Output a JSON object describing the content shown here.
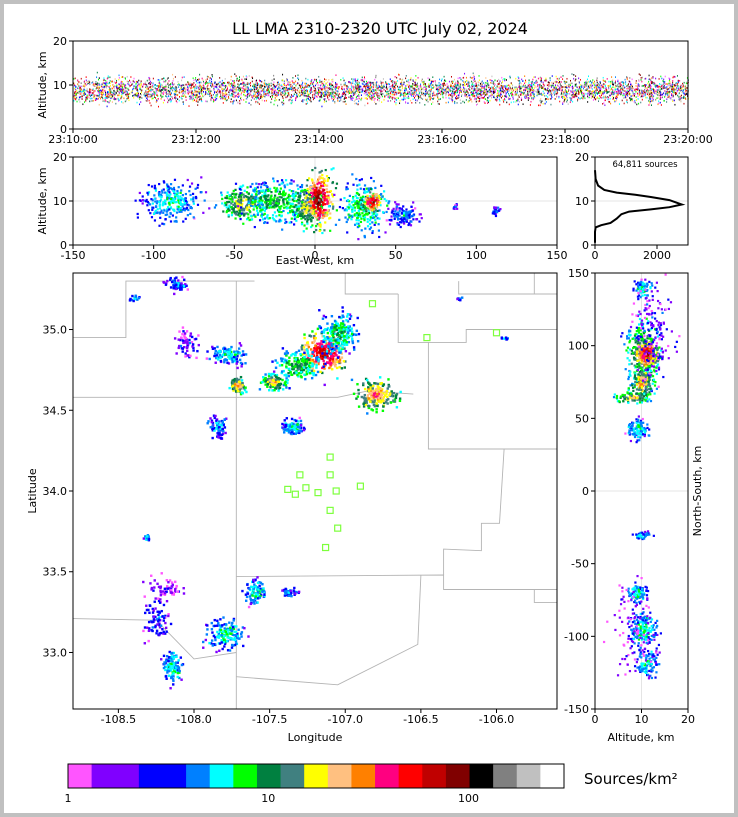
{
  "title": "LL LMA 2310-2320 UTC July 02, 2024",
  "chart_data": [
    {
      "name": "time-altitude",
      "type": "scatter",
      "xlabel": "",
      "ylabel": "Altitude, km",
      "xlim": [
        0,
        600
      ],
      "ylim": [
        0,
        20
      ],
      "x_ticks": [
        "23:10:00",
        "23:12:00",
        "23:14:00",
        "23:16:00",
        "23:18:00",
        "23:20:00"
      ],
      "y_ticks": [
        0,
        10,
        20
      ],
      "band": {
        "low": 4,
        "high": 14,
        "peak": 9
      }
    },
    {
      "name": "ew-altitude",
      "type": "heatmap",
      "xlabel": "East-West, km",
      "ylabel": "Altitude, km",
      "xlim": [
        -150,
        150
      ],
      "ylim": [
        0,
        20
      ],
      "x_ticks": [
        -150,
        -100,
        -50,
        0,
        50,
        100,
        150
      ],
      "y_ticks": [
        0,
        10,
        20
      ],
      "clusters": [
        {
          "x": -90,
          "z": 10,
          "w": 15,
          "h": 4,
          "n": 260,
          "c": 0.28
        },
        {
          "x": -45,
          "z": 9.5,
          "w": 12,
          "h": 3,
          "n": 260,
          "c": 0.5
        },
        {
          "x": -25,
          "z": 10,
          "w": 15,
          "h": 4,
          "n": 300,
          "c": 0.38
        },
        {
          "x": -5,
          "z": 9,
          "w": 10,
          "h": 4,
          "n": 240,
          "c": 0.5
        },
        {
          "x": 2,
          "z": 10.5,
          "w": 7,
          "h": 5,
          "n": 240,
          "c": 0.85
        },
        {
          "x": 30,
          "z": 9,
          "w": 12,
          "h": 5,
          "n": 260,
          "c": 0.35
        },
        {
          "x": 35,
          "z": 10,
          "w": 5,
          "h": 2,
          "n": 90,
          "c": 0.78
        },
        {
          "x": 55,
          "z": 7,
          "w": 8,
          "h": 2,
          "n": 120,
          "c": 0.2
        },
        {
          "x": 112,
          "z": 8,
          "w": 2,
          "h": 1,
          "n": 25,
          "c": 0.2
        },
        {
          "x": 86,
          "z": 9,
          "w": 1.5,
          "h": 0.5,
          "n": 10,
          "c": 0.15
        }
      ]
    },
    {
      "name": "altitude-histogram",
      "type": "line",
      "annotation": "64,811 sources",
      "xlim": [
        0,
        3000
      ],
      "ylim": [
        0,
        20
      ],
      "x_ticks": [
        0,
        2000
      ],
      "y_ticks": [
        0,
        10,
        20
      ],
      "points": [
        [
          0,
          0.5
        ],
        [
          0,
          3
        ],
        [
          20,
          4
        ],
        [
          200,
          4.5
        ],
        [
          500,
          5
        ],
        [
          700,
          6
        ],
        [
          850,
          7
        ],
        [
          1100,
          7.6
        ],
        [
          1800,
          8.1
        ],
        [
          2400,
          8.6
        ],
        [
          2800,
          9.2
        ],
        [
          2400,
          10.2
        ],
        [
          1800,
          10.9
        ],
        [
          1300,
          11.4
        ],
        [
          700,
          11.9
        ],
        [
          300,
          12.5
        ],
        [
          100,
          13.5
        ],
        [
          20,
          15
        ],
        [
          0,
          17
        ]
      ]
    },
    {
      "name": "plan-view",
      "type": "heatmap",
      "xlabel": "Longitude",
      "ylabel": "Latitude",
      "xlim": [
        -108.8,
        -105.6
      ],
      "ylim": [
        32.65,
        35.35
      ],
      "x_ticks": [
        -108.5,
        -108.0,
        -107.5,
        -107.0,
        -106.5,
        -106.0
      ],
      "y_ticks": [
        33.0,
        33.5,
        34.0,
        34.5,
        35.0
      ],
      "clusters": [
        {
          "x": -107.15,
          "y": 34.86,
          "w": 0.12,
          "h": 0.1,
          "n": 280,
          "c": 0.82
        },
        {
          "x": -107.05,
          "y": 34.98,
          "w": 0.1,
          "h": 0.1,
          "n": 220,
          "c": 0.35
        },
        {
          "x": -107.32,
          "y": 34.78,
          "w": 0.12,
          "h": 0.08,
          "n": 180,
          "c": 0.4
        },
        {
          "x": -107.48,
          "y": 34.68,
          "w": 0.07,
          "h": 0.04,
          "n": 120,
          "c": 0.55
        },
        {
          "x": -106.8,
          "y": 34.6,
          "w": 0.12,
          "h": 0.08,
          "n": 200,
          "c": 0.62
        },
        {
          "x": -107.72,
          "y": 34.66,
          "w": 0.04,
          "h": 0.04,
          "n": 90,
          "c": 0.62
        },
        {
          "x": -107.78,
          "y": 34.85,
          "w": 0.1,
          "h": 0.05,
          "n": 110,
          "c": 0.28
        },
        {
          "x": -107.35,
          "y": 34.4,
          "w": 0.06,
          "h": 0.04,
          "n": 100,
          "c": 0.28
        },
        {
          "x": -107.85,
          "y": 34.4,
          "w": 0.05,
          "h": 0.06,
          "n": 80,
          "c": 0.22
        },
        {
          "x": -108.12,
          "y": 35.28,
          "w": 0.06,
          "h": 0.04,
          "n": 60,
          "c": 0.2
        },
        {
          "x": -108.05,
          "y": 34.92,
          "w": 0.06,
          "h": 0.08,
          "n": 60,
          "c": 0.12
        },
        {
          "x": -107.6,
          "y": 33.38,
          "w": 0.06,
          "h": 0.06,
          "n": 90,
          "c": 0.3
        },
        {
          "x": -107.8,
          "y": 33.12,
          "w": 0.1,
          "h": 0.08,
          "n": 150,
          "c": 0.3
        },
        {
          "x": -108.15,
          "y": 32.92,
          "w": 0.05,
          "h": 0.08,
          "n": 110,
          "c": 0.3
        },
        {
          "x": -108.25,
          "y": 33.2,
          "w": 0.08,
          "h": 0.1,
          "n": 80,
          "c": 0.18
        },
        {
          "x": -108.2,
          "y": 33.4,
          "w": 0.1,
          "h": 0.06,
          "n": 60,
          "c": 0.1
        },
        {
          "x": -107.38,
          "y": 33.38,
          "w": 0.05,
          "h": 0.03,
          "n": 40,
          "c": 0.22
        },
        {
          "x": -108.32,
          "y": 33.72,
          "w": 0.015,
          "h": 0.015,
          "n": 15,
          "c": 0.3
        },
        {
          "x": -108.4,
          "y": 35.2,
          "w": 0.03,
          "h": 0.02,
          "n": 15,
          "c": 0.25
        },
        {
          "x": -106.25,
          "y": 35.2,
          "w": 0.02,
          "h": 0.01,
          "n": 10,
          "c": 0.2
        },
        {
          "x": -105.95,
          "y": 34.95,
          "w": 0.02,
          "h": 0.01,
          "n": 8,
          "c": 0.2
        }
      ],
      "stations": [
        [
          -106.82,
          35.16
        ],
        [
          -106.46,
          34.95
        ],
        [
          -106.0,
          34.98
        ],
        [
          -107.1,
          34.21
        ],
        [
          -107.3,
          34.1
        ],
        [
          -107.1,
          34.1
        ],
        [
          -107.38,
          34.01
        ],
        [
          -107.26,
          34.02
        ],
        [
          -107.33,
          33.98
        ],
        [
          -107.18,
          33.99
        ],
        [
          -107.06,
          34.0
        ],
        [
          -106.9,
          34.03
        ],
        [
          -107.1,
          33.88
        ],
        [
          -107.05,
          33.77
        ],
        [
          -107.13,
          33.65
        ]
      ],
      "county_lines": [
        [
          [
            -108.8,
            34.95
          ],
          [
            -108.45,
            34.95
          ],
          [
            -108.45,
            35.3
          ],
          [
            -107.6,
            35.3
          ]
        ],
        [
          [
            -108.8,
            34.58
          ],
          [
            -107.05,
            34.58
          ],
          [
            -106.85,
            34.62
          ],
          [
            -106.55,
            34.6
          ]
        ],
        [
          [
            -107.72,
            35.3
          ],
          [
            -107.72,
            34.58
          ]
        ],
        [
          [
            -107.72,
            34.58
          ],
          [
            -107.72,
            33.47
          ]
        ],
        [
          [
            -107.72,
            33.47
          ],
          [
            -106.35,
            33.48
          ],
          [
            -106.35,
            33.39
          ],
          [
            -105.6,
            33.39
          ]
        ],
        [
          [
            -108.8,
            33.21
          ],
          [
            -108.25,
            33.2
          ],
          [
            -108.0,
            32.96
          ],
          [
            -107.72,
            33.0
          ]
        ],
        [
          [
            -107.72,
            33.47
          ],
          [
            -107.72,
            32.65
          ]
        ],
        [
          [
            -107.72,
            32.85
          ],
          [
            -107.05,
            32.8
          ],
          [
            -106.52,
            33.05
          ],
          [
            -106.5,
            33.48
          ]
        ],
        [
          [
            -106.65,
            35.22
          ],
          [
            -106.65,
            34.92
          ],
          [
            -106.45,
            34.92
          ],
          [
            -106.45,
            34.26
          ],
          [
            -105.6,
            34.26
          ]
        ],
        [
          [
            -106.45,
            34.92
          ],
          [
            -106.2,
            34.92
          ],
          [
            -106.2,
            35.0
          ],
          [
            -105.6,
            35.0
          ]
        ],
        [
          [
            -106.25,
            35.3
          ],
          [
            -106.25,
            35.22
          ],
          [
            -105.6,
            35.22
          ]
        ],
        [
          [
            -105.95,
            34.26
          ],
          [
            -105.98,
            33.8
          ],
          [
            -106.1,
            33.8
          ],
          [
            -106.1,
            33.63
          ],
          [
            -106.35,
            33.64
          ],
          [
            -106.35,
            33.48
          ]
        ],
        [
          [
            -105.75,
            33.39
          ],
          [
            -105.75,
            33.31
          ],
          [
            -105.6,
            33.31
          ]
        ],
        [
          [
            -107.0,
            35.35
          ],
          [
            -107.0,
            35.22
          ],
          [
            -106.65,
            35.22
          ]
        ],
        [
          [
            -105.75,
            35.35
          ],
          [
            -105.75,
            35.22
          ]
        ]
      ]
    },
    {
      "name": "altitude-ns",
      "type": "heatmap",
      "xlabel": "Altitude, km",
      "ylabel": "North-South, km",
      "xlim": [
        0,
        20
      ],
      "ylim": [
        -150,
        150
      ],
      "x_ticks": [
        0,
        10,
        20
      ],
      "y_ticks": [
        -150,
        -100,
        -50,
        0,
        50,
        100,
        150
      ],
      "clusters": [
        {
          "z": 10,
          "y": 95,
          "w": 3,
          "h": 20,
          "n": 320,
          "c": 0.45
        },
        {
          "z": 11,
          "y": 95,
          "w": 2,
          "h": 8,
          "n": 180,
          "c": 0.8
        },
        {
          "z": 10,
          "y": 75,
          "w": 2,
          "h": 8,
          "n": 140,
          "c": 0.6
        },
        {
          "z": 8,
          "y": 65,
          "w": 3,
          "h": 3,
          "n": 90,
          "c": 0.55
        },
        {
          "z": 10,
          "y": 140,
          "w": 1.5,
          "h": 5,
          "n": 80,
          "c": 0.3
        },
        {
          "z": 9,
          "y": 43,
          "w": 2,
          "h": 6,
          "n": 110,
          "c": 0.28
        },
        {
          "z": 12,
          "y": 110,
          "w": 4,
          "h": 25,
          "n": 160,
          "c": 0.12
        },
        {
          "z": 10,
          "y": -30,
          "w": 2,
          "h": 2,
          "n": 40,
          "c": 0.25
        },
        {
          "z": 9,
          "y": -70,
          "w": 2,
          "h": 5,
          "n": 90,
          "c": 0.3
        },
        {
          "z": 10,
          "y": -95,
          "w": 2.5,
          "h": 10,
          "n": 170,
          "c": 0.3
        },
        {
          "z": 11,
          "y": -118,
          "w": 2,
          "h": 8,
          "n": 110,
          "c": 0.28
        },
        {
          "z": 8,
          "y": -90,
          "w": 4,
          "h": 30,
          "n": 90,
          "c": 0.08
        }
      ]
    },
    {
      "name": "colorbar",
      "type": "bar",
      "label": "Sources/km²",
      "tick_labels": [
        "1",
        "10",
        "100"
      ],
      "tick_values": [
        1,
        10,
        100
      ],
      "range": [
        1,
        300
      ],
      "colors": [
        "#ff55ff",
        "#8000ff",
        "#0000ff",
        "#0080ff",
        "#00ffff",
        "#00ff00",
        "#008040",
        "#408080",
        "#ffff00",
        "#ffc080",
        "#ff8000",
        "#ff0080",
        "#ff0000",
        "#c00000",
        "#800000",
        "#000000",
        "#808080",
        "#c0c0c0",
        "#ffffff"
      ],
      "segment_widths": [
        1,
        2,
        2,
        1,
        1,
        1,
        1,
        1,
        1,
        1,
        1,
        1,
        1,
        1,
        1,
        1,
        1,
        1,
        1
      ]
    }
  ]
}
